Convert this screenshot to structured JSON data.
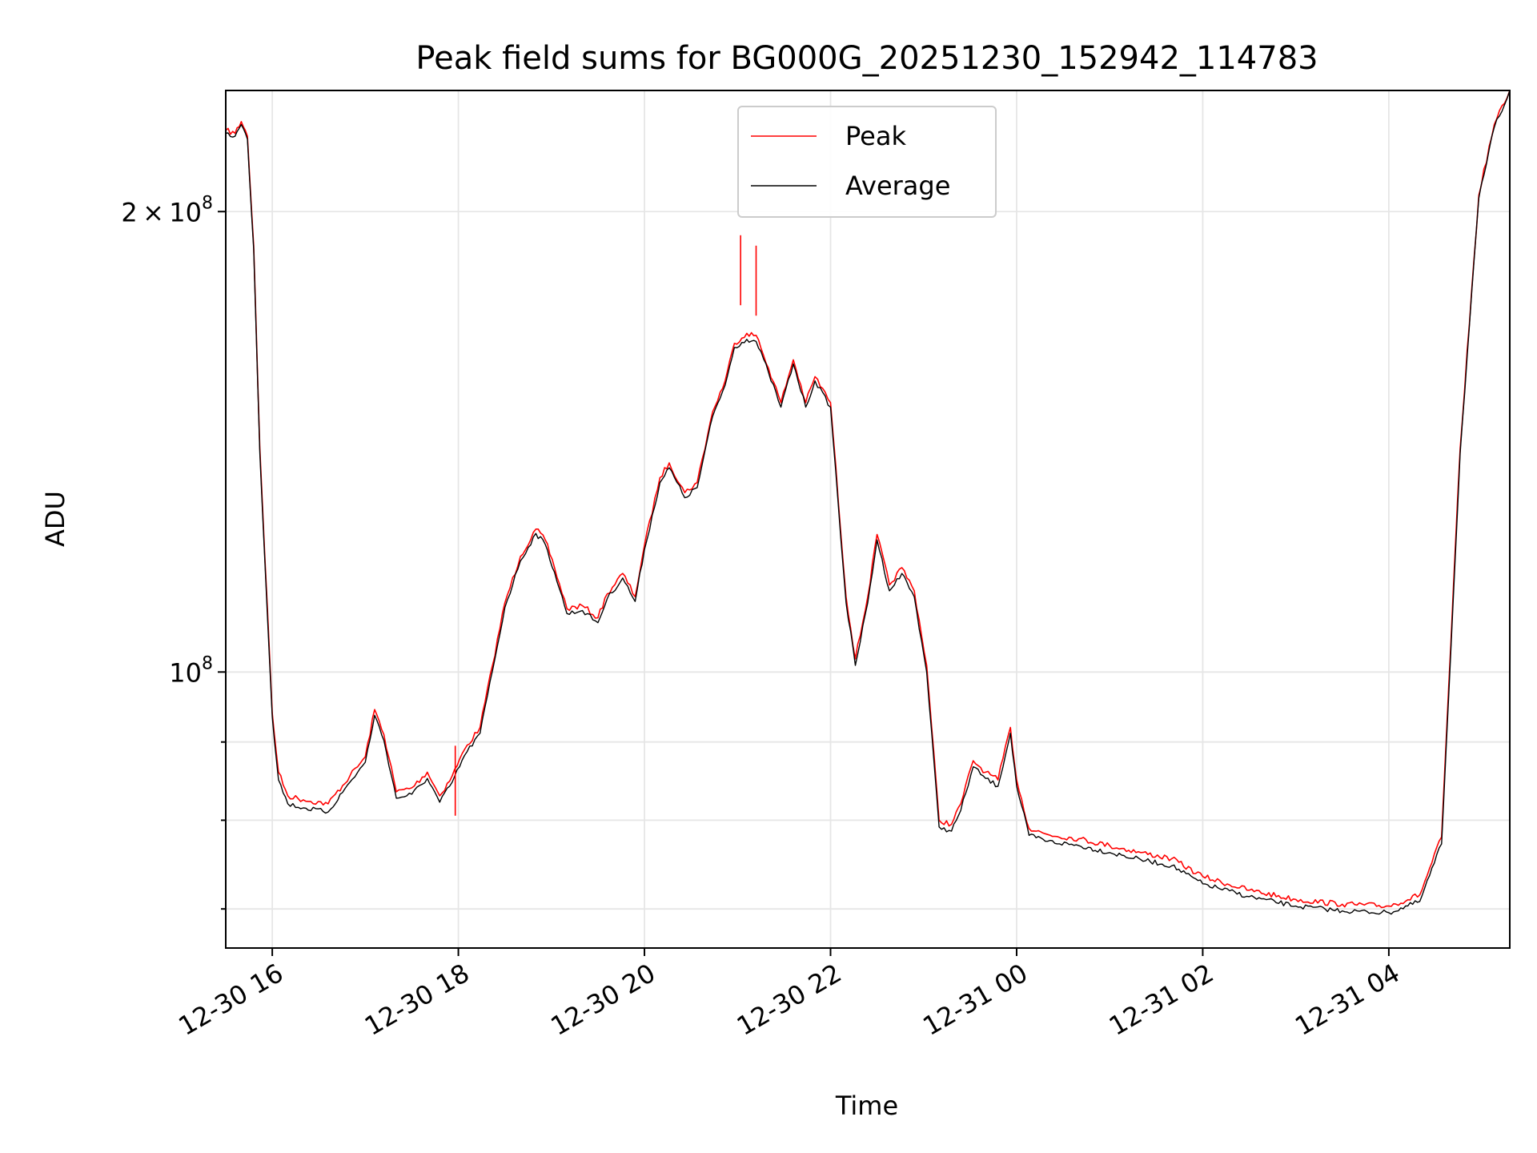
{
  "chart_data": {
    "type": "line",
    "title": "Peak field sums for BG000G_20251230_152942_114783",
    "xlabel": "Time",
    "ylabel": "ADU",
    "y_scale": "log",
    "ylim": [
      66000000,
      240000000
    ],
    "xlim": [
      "2025-12-30 15:30",
      "2025-12-31 05:18"
    ],
    "grid": true,
    "legend_position": "top-center",
    "x_ticks": [
      {
        "t": "2025-12-30 16:00",
        "label": "12-30 16"
      },
      {
        "t": "2025-12-30 18:00",
        "label": "12-30 18"
      },
      {
        "t": "2025-12-30 20:00",
        "label": "12-30 20"
      },
      {
        "t": "2025-12-30 22:00",
        "label": "12-30 22"
      },
      {
        "t": "2025-12-31 00:00",
        "label": "12-31 00"
      },
      {
        "t": "2025-12-31 02:00",
        "label": "12-31 02"
      },
      {
        "t": "2025-12-31 04:00",
        "label": "12-31 04"
      }
    ],
    "y_ticks_major": [
      {
        "v": 100000000,
        "base": "10",
        "exp": "8",
        "coef": ""
      },
      {
        "v": 200000000,
        "base": "10",
        "exp": "8",
        "coef": "2"
      }
    ],
    "y_ticks_minor": [
      70000000,
      80000000,
      90000000
    ],
    "series": [
      {
        "name": "Peak",
        "color": "#ff0000",
        "x": [
          "2025-12-30 15:30",
          "2025-12-30 15:36",
          "2025-12-30 15:40",
          "2025-12-30 15:44",
          "2025-12-30 15:48",
          "2025-12-30 15:52",
          "2025-12-30 16:00",
          "2025-12-30 16:04",
          "2025-12-30 16:10",
          "2025-12-30 16:20",
          "2025-12-30 16:36",
          "2025-12-30 16:50",
          "2025-12-30 17:00",
          "2025-12-30 17:06",
          "2025-12-30 17:12",
          "2025-12-30 17:20",
          "2025-12-30 17:30",
          "2025-12-30 17:40",
          "2025-12-30 17:48",
          "2025-12-30 17:56",
          "2025-12-30 18:04",
          "2025-12-30 18:14",
          "2025-12-30 18:22",
          "2025-12-30 18:30",
          "2025-12-30 18:40",
          "2025-12-30 18:50",
          "2025-12-30 18:56",
          "2025-12-30 19:02",
          "2025-12-30 19:10",
          "2025-12-30 19:20",
          "2025-12-30 19:30",
          "2025-12-30 19:36",
          "2025-12-30 19:46",
          "2025-12-30 19:54",
          "2025-12-30 20:00",
          "2025-12-30 20:10",
          "2025-12-30 20:16",
          "2025-12-30 20:26",
          "2025-12-30 20:34",
          "2025-12-30 20:44",
          "2025-12-30 20:52",
          "2025-12-30 20:58",
          "2025-12-30 21:06",
          "2025-12-30 21:12",
          "2025-12-30 21:20",
          "2025-12-30 21:28",
          "2025-12-30 21:36",
          "2025-12-30 21:44",
          "2025-12-30 21:50",
          "2025-12-30 22:00",
          "2025-12-30 22:10",
          "2025-12-30 22:16",
          "2025-12-30 22:24",
          "2025-12-30 22:30",
          "2025-12-30 22:38",
          "2025-12-30 22:46",
          "2025-12-30 22:54",
          "2025-12-30 23:02",
          "2025-12-30 23:10",
          "2025-12-30 23:18",
          "2025-12-30 23:24",
          "2025-12-30 23:32",
          "2025-12-30 23:40",
          "2025-12-30 23:48",
          "2025-12-30 23:56",
          "2025-12-31 00:00",
          "2025-12-31 00:08",
          "2025-12-31 00:20",
          "2025-12-31 00:40",
          "2025-12-31 01:00",
          "2025-12-31 01:20",
          "2025-12-31 01:40",
          "2025-12-31 02:00",
          "2025-12-31 02:30",
          "2025-12-31 03:00",
          "2025-12-31 03:30",
          "2025-12-31 04:00",
          "2025-12-31 04:20",
          "2025-12-31 04:34",
          "2025-12-31 04:46",
          "2025-12-31 04:58",
          "2025-12-31 05:08",
          "2025-12-31 05:18"
        ],
        "y": [
          226000000,
          225000000,
          229000000,
          224000000,
          190000000,
          140000000,
          94000000,
          86000000,
          83000000,
          82500000,
          82000000,
          85500000,
          88000000,
          94500000,
          91000000,
          83500000,
          84000000,
          86000000,
          83000000,
          85500000,
          89000000,
          92000000,
          101000000,
          111000000,
          119000000,
          124000000,
          122000000,
          117000000,
          110000000,
          110500000,
          108500000,
          112500000,
          116000000,
          112000000,
          121000000,
          134000000,
          137000000,
          131000000,
          133000000,
          148000000,
          155000000,
          164000000,
          166500000,
          166000000,
          158000000,
          150000000,
          160000000,
          150000000,
          156000000,
          150000000,
          112000000,
          102000000,
          112000000,
          123000000,
          114000000,
          117000000,
          113000000,
          101000000,
          80000000,
          79500000,
          82000000,
          87500000,
          86000000,
          85000000,
          92000000,
          85000000,
          79000000,
          78300000,
          77800000,
          77000000,
          76200000,
          75500000,
          73500000,
          72000000,
          71000000,
          70500000,
          70300000,
          71500000,
          78000000,
          140000000,
          205000000,
          228000000,
          240000000
        ]
      },
      {
        "name": "Average",
        "color": "#000000",
        "x": [
          "2025-12-30 15:30",
          "2025-12-30 15:36",
          "2025-12-30 15:40",
          "2025-12-30 15:44",
          "2025-12-30 15:48",
          "2025-12-30 15:52",
          "2025-12-30 16:00",
          "2025-12-30 16:04",
          "2025-12-30 16:10",
          "2025-12-30 16:20",
          "2025-12-30 16:36",
          "2025-12-30 16:50",
          "2025-12-30 17:00",
          "2025-12-30 17:06",
          "2025-12-30 17:12",
          "2025-12-30 17:20",
          "2025-12-30 17:30",
          "2025-12-30 17:40",
          "2025-12-30 17:48",
          "2025-12-30 17:56",
          "2025-12-30 18:04",
          "2025-12-30 18:14",
          "2025-12-30 18:22",
          "2025-12-30 18:30",
          "2025-12-30 18:40",
          "2025-12-30 18:50",
          "2025-12-30 18:56",
          "2025-12-30 19:02",
          "2025-12-30 19:10",
          "2025-12-30 19:20",
          "2025-12-30 19:30",
          "2025-12-30 19:36",
          "2025-12-30 19:46",
          "2025-12-30 19:54",
          "2025-12-30 20:00",
          "2025-12-30 20:10",
          "2025-12-30 20:16",
          "2025-12-30 20:26",
          "2025-12-30 20:34",
          "2025-12-30 20:44",
          "2025-12-30 20:52",
          "2025-12-30 20:58",
          "2025-12-30 21:06",
          "2025-12-30 21:12",
          "2025-12-30 21:20",
          "2025-12-30 21:28",
          "2025-12-30 21:36",
          "2025-12-30 21:44",
          "2025-12-30 21:50",
          "2025-12-30 22:00",
          "2025-12-30 22:10",
          "2025-12-30 22:16",
          "2025-12-30 22:24",
          "2025-12-30 22:30",
          "2025-12-30 22:38",
          "2025-12-30 22:46",
          "2025-12-30 22:54",
          "2025-12-30 23:02",
          "2025-12-30 23:10",
          "2025-12-30 23:18",
          "2025-12-30 23:24",
          "2025-12-30 23:32",
          "2025-12-30 23:40",
          "2025-12-30 23:48",
          "2025-12-30 23:56",
          "2025-12-31 00:00",
          "2025-12-31 00:08",
          "2025-12-31 00:20",
          "2025-12-31 00:40",
          "2025-12-31 01:00",
          "2025-12-31 01:20",
          "2025-12-31 01:40",
          "2025-12-31 02:00",
          "2025-12-31 02:30",
          "2025-12-31 03:00",
          "2025-12-31 03:30",
          "2025-12-31 04:00",
          "2025-12-31 04:20",
          "2025-12-31 04:34",
          "2025-12-31 04:46",
          "2025-12-31 04:58",
          "2025-12-31 05:08",
          "2025-12-31 05:18"
        ],
        "y": [
          225000000,
          224000000,
          228000000,
          223000000,
          189000000,
          139000000,
          93500000,
          85000000,
          82000000,
          81500000,
          81000000,
          84700000,
          87300000,
          93700000,
          90200000,
          82700000,
          83200000,
          85200000,
          82200000,
          84700000,
          88200000,
          91200000,
          100200000,
          110200000,
          118200000,
          123200000,
          121200000,
          116200000,
          109200000,
          109700000,
          107700000,
          111700000,
          115200000,
          111200000,
          120200000,
          133000000,
          136000000,
          130000000,
          132000000,
          147000000,
          154000000,
          163000000,
          165000000,
          164500000,
          157000000,
          149000000,
          159000000,
          149000000,
          155000000,
          149000000,
          111000000,
          101000000,
          111000000,
          122000000,
          113000000,
          116000000,
          112000000,
          100000000,
          79200000,
          78700000,
          81200000,
          86700000,
          85200000,
          84200000,
          91200000,
          84200000,
          78200000,
          77500000,
          77000000,
          76200000,
          75400000,
          74700000,
          72700000,
          71300000,
          70300000,
          69800000,
          69600000,
          70800000,
          77200000,
          139000000,
          204000000,
          227000000,
          240000000
        ]
      }
    ],
    "spikes": [
      {
        "t": "2025-12-30 21:02",
        "y": 193000000
      },
      {
        "t": "2025-12-30 21:12",
        "y": 190000000
      },
      {
        "t": "2025-12-30 17:58",
        "y": 89500000
      }
    ]
  }
}
